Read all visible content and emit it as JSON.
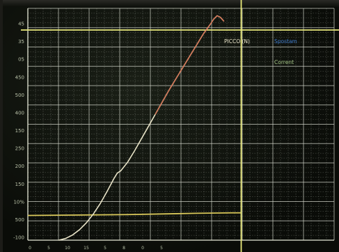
{
  "chart_data": {
    "type": "line",
    "title": "",
    "xlabel": "",
    "ylabel": "",
    "y_tick_labels": [
      "45",
      "35",
      "05",
      "450",
      "500",
      "400",
      "150",
      "250",
      "200",
      "150",
      "10%",
      "500",
      "-100"
    ],
    "x_tick_labels": [
      "0",
      "5",
      "10",
      "15",
      "5",
      "8",
      "0",
      "5"
    ],
    "series": [
      {
        "name": "PICCO (N)",
        "color": "#e9e4c8",
        "x": [
          0,
          2,
          4,
          6,
          8,
          10,
          12,
          14,
          16,
          17,
          18,
          20,
          22,
          24,
          26,
          28,
          30,
          32,
          34,
          36,
          38,
          40,
          42,
          44,
          45,
          46,
          47,
          48
        ],
        "y": [
          -100,
          -96,
          -88,
          -76,
          -60,
          -40,
          -16,
          12,
          42,
          55,
          60,
          80,
          106,
          134,
          162,
          190,
          218,
          246,
          272,
          298,
          324,
          350,
          376,
          398,
          410,
          418,
          414,
          405
        ]
      }
    ],
    "legend": [
      {
        "label": "PICCO (N)",
        "color": "#e9e4c8"
      },
      {
        "label": "Spostam",
        "color": "#3c78c8"
      },
      {
        "label": "Corrent",
        "color": "#a7c889"
      }
    ],
    "grid": true,
    "grid_color": "#d8dcd0",
    "xlim": [
      -9,
      80
    ],
    "ylim": [
      -100,
      435
    ]
  },
  "cursors": {
    "vertical_at_x": 53,
    "horizontal_at_y": 385,
    "color": "#e9e97a"
  },
  "baseline_trace": {
    "color": "#d9c85a",
    "x": [
      -9,
      20,
      40,
      50,
      53
    ],
    "y": [
      -43,
      -41,
      -38,
      -37,
      -37
    ]
  }
}
